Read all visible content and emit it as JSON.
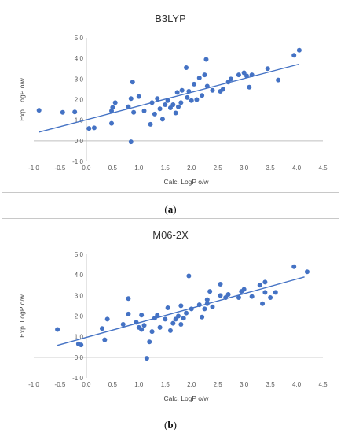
{
  "chart_data": [
    {
      "type": "scatter",
      "title": "B3LYP",
      "xlabel": "Calc. LogP o/w",
      "ylabel": "Exp. LogP o/w",
      "xlim": [
        -1.0,
        4.5
      ],
      "ylim": [
        -1.0,
        5.0
      ],
      "xticks": [
        "-1.0",
        "-0.5",
        "0.0",
        "0.5",
        "1.0",
        "1.5",
        "2.0",
        "2.5",
        "3.0",
        "3.5",
        "4.0",
        "4.5"
      ],
      "yticks": [
        "-1.0",
        "0.0",
        "1.0",
        "2.0",
        "3.0",
        "4.0",
        "5.0"
      ],
      "point_color": "#4472c4",
      "trendline": {
        "x": [
          -0.9,
          4.05
        ],
        "y": [
          0.42,
          3.72
        ]
      },
      "points": [
        [
          -0.9,
          1.48
        ],
        [
          -0.45,
          1.38
        ],
        [
          -0.22,
          1.4
        ],
        [
          0.05,
          0.6
        ],
        [
          0.15,
          0.63
        ],
        [
          0.48,
          0.85
        ],
        [
          0.48,
          1.45
        ],
        [
          0.5,
          1.62
        ],
        [
          0.55,
          1.85
        ],
        [
          0.8,
          1.65
        ],
        [
          0.85,
          2.05
        ],
        [
          0.88,
          2.85
        ],
        [
          0.9,
          1.38
        ],
        [
          0.85,
          -0.05
        ],
        [
          1.0,
          2.15
        ],
        [
          1.1,
          1.45
        ],
        [
          1.22,
          0.8
        ],
        [
          1.25,
          1.85
        ],
        [
          1.3,
          1.3
        ],
        [
          1.35,
          2.05
        ],
        [
          1.4,
          1.55
        ],
        [
          1.45,
          1.05
        ],
        [
          1.5,
          1.75
        ],
        [
          1.55,
          1.95
        ],
        [
          1.6,
          1.6
        ],
        [
          1.65,
          1.75
        ],
        [
          1.7,
          1.35
        ],
        [
          1.73,
          2.35
        ],
        [
          1.75,
          1.65
        ],
        [
          1.8,
          1.85
        ],
        [
          1.82,
          2.45
        ],
        [
          1.9,
          3.55
        ],
        [
          1.92,
          2.1
        ],
        [
          1.95,
          2.4
        ],
        [
          2.0,
          1.95
        ],
        [
          2.05,
          2.75
        ],
        [
          2.1,
          2.0
        ],
        [
          2.15,
          3.05
        ],
        [
          2.2,
          2.2
        ],
        [
          2.25,
          3.2
        ],
        [
          2.28,
          3.95
        ],
        [
          2.3,
          2.65
        ],
        [
          2.4,
          2.45
        ],
        [
          2.55,
          2.4
        ],
        [
          2.6,
          2.5
        ],
        [
          2.7,
          2.85
        ],
        [
          2.75,
          3.0
        ],
        [
          2.9,
          3.2
        ],
        [
          3.0,
          3.3
        ],
        [
          3.05,
          3.15
        ],
        [
          3.1,
          2.6
        ],
        [
          3.15,
          3.2
        ],
        [
          3.45,
          3.5
        ],
        [
          3.65,
          2.95
        ],
        [
          3.95,
          4.15
        ],
        [
          4.05,
          4.4
        ]
      ]
    },
    {
      "type": "scatter",
      "title": "M06-2X",
      "xlabel": "Calc. LogP o/w",
      "ylabel": "Exp. LogP o/w",
      "xlim": [
        -1.0,
        4.5
      ],
      "ylim": [
        -1.0,
        5.0
      ],
      "xticks": [
        "-1.0",
        "-0.5",
        "0.0",
        "0.5",
        "1.0",
        "1.5",
        "2.0",
        "2.5",
        "3.0",
        "3.5",
        "4.0",
        "4.5"
      ],
      "yticks": [
        "-1.0",
        "0.0",
        "1.0",
        "2.0",
        "3.0",
        "4.0",
        "5.0"
      ],
      "point_color": "#4472c4",
      "trendline": {
        "x": [
          -0.55,
          4.15
        ],
        "y": [
          0.58,
          3.9
        ]
      },
      "points": [
        [
          -0.55,
          1.35
        ],
        [
          -0.15,
          0.65
        ],
        [
          -0.1,
          0.6
        ],
        [
          0.3,
          1.4
        ],
        [
          0.35,
          0.85
        ],
        [
          0.4,
          1.85
        ],
        [
          0.7,
          1.6
        ],
        [
          0.8,
          2.85
        ],
        [
          0.8,
          2.1
        ],
        [
          0.95,
          1.7
        ],
        [
          1.0,
          1.45
        ],
        [
          1.05,
          1.35
        ],
        [
          1.05,
          2.05
        ],
        [
          1.1,
          1.55
        ],
        [
          1.15,
          -0.05
        ],
        [
          1.2,
          0.75
        ],
        [
          1.25,
          1.25
        ],
        [
          1.3,
          1.9
        ],
        [
          1.35,
          2.05
        ],
        [
          1.4,
          1.45
        ],
        [
          1.5,
          1.85
        ],
        [
          1.55,
          2.4
        ],
        [
          1.6,
          1.3
        ],
        [
          1.65,
          1.65
        ],
        [
          1.7,
          1.85
        ],
        [
          1.75,
          2.0
        ],
        [
          1.8,
          1.6
        ],
        [
          1.8,
          2.5
        ],
        [
          1.85,
          1.9
        ],
        [
          1.9,
          2.15
        ],
        [
          1.95,
          3.95
        ],
        [
          2.0,
          2.35
        ],
        [
          2.15,
          2.55
        ],
        [
          2.2,
          1.95
        ],
        [
          2.25,
          2.35
        ],
        [
          2.3,
          2.6
        ],
        [
          2.3,
          2.8
        ],
        [
          2.35,
          3.2
        ],
        [
          2.4,
          2.45
        ],
        [
          2.55,
          3.55
        ],
        [
          2.55,
          3.0
        ],
        [
          2.65,
          2.9
        ],
        [
          2.7,
          3.05
        ],
        [
          2.9,
          2.9
        ],
        [
          2.95,
          3.2
        ],
        [
          3.0,
          3.3
        ],
        [
          3.15,
          2.95
        ],
        [
          3.3,
          3.5
        ],
        [
          3.35,
          2.6
        ],
        [
          3.4,
          3.65
        ],
        [
          3.4,
          3.15
        ],
        [
          3.5,
          2.9
        ],
        [
          3.6,
          3.15
        ],
        [
          3.95,
          4.4
        ],
        [
          4.2,
          4.15
        ]
      ]
    }
  ],
  "captions": [
    {
      "open": "(",
      "letter": "a",
      "close": ")"
    },
    {
      "open": "(",
      "letter": "b",
      "close": ")"
    }
  ]
}
